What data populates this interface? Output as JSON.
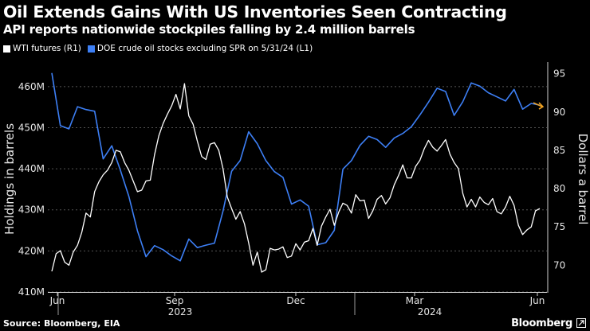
{
  "title": "Oil Extends Gains With US Inventories Seen Contracting",
  "subtitle": "API reports nationwide stockpiles falling by 2.4 million barrels",
  "source": "Source: Bloomberg, EIA",
  "brand": "Bloomberg",
  "chart_data": {
    "type": "line",
    "legend": [
      {
        "name": "WTI futures (R1)",
        "color": "#ffffff"
      },
      {
        "name": "DOE crude oil stocks excluding SPR on 5/31/24 (L1)",
        "color": "#3d7ff5"
      }
    ],
    "x_ticks": [
      "Jun",
      "Sep",
      "Dec",
      "Mar",
      "Jun"
    ],
    "x_year_labels": [
      "2023",
      "2024"
    ],
    "y_left": {
      "label": "Holdings in barrels",
      "ticks": [
        "410M",
        "420M",
        "430M",
        "440M",
        "450M",
        "460M"
      ],
      "range": [
        410,
        465
      ]
    },
    "y_right": {
      "label": "Dollars a barrel",
      "ticks": [
        "70",
        "75",
        "80",
        "85",
        "90",
        "95"
      ],
      "range": [
        66.5,
        96
      ]
    },
    "series": [
      {
        "name": "DOE crude oil stocks excluding SPR on 5/31/24 (L1)",
        "axis": "left",
        "color": "#3d7ff5",
        "values": [
          [
            0,
            463.3
          ],
          [
            1,
            450.5
          ],
          [
            2,
            449.7
          ],
          [
            3,
            455.1
          ],
          [
            4,
            454.4
          ],
          [
            5,
            454.0
          ],
          [
            6,
            442.4
          ],
          [
            7,
            445.6
          ],
          [
            8,
            439.7
          ],
          [
            9,
            433.3
          ],
          [
            10,
            424.9
          ],
          [
            11,
            418.6
          ],
          [
            12,
            421.3
          ],
          [
            13,
            420.3
          ],
          [
            14,
            418.8
          ],
          [
            15,
            417.6
          ],
          [
            16,
            422.9
          ],
          [
            17,
            420.8
          ],
          [
            18,
            421.4
          ],
          [
            19,
            421.9
          ],
          [
            20,
            429.7
          ],
          [
            21,
            439.4
          ],
          [
            22,
            442.0
          ],
          [
            23,
            449.0
          ],
          [
            24,
            446.1
          ],
          [
            25,
            442.0
          ],
          [
            26,
            439.3
          ],
          [
            27,
            437.9
          ],
          [
            28,
            431.4
          ],
          [
            29,
            432.4
          ],
          [
            30,
            430.9
          ],
          [
            31,
            421.5
          ],
          [
            32,
            422.0
          ],
          [
            33,
            425.0
          ],
          [
            34,
            439.9
          ],
          [
            35,
            442.0
          ],
          [
            36,
            445.7
          ],
          [
            37,
            447.9
          ],
          [
            38,
            447.1
          ],
          [
            39,
            445.2
          ],
          [
            40,
            447.5
          ],
          [
            41,
            448.6
          ],
          [
            42,
            450.2
          ],
          [
            43,
            453.1
          ],
          [
            44,
            456.2
          ],
          [
            45,
            459.6
          ],
          [
            46,
            458.8
          ],
          [
            47,
            453.0
          ],
          [
            48,
            456.3
          ],
          [
            49,
            460.9
          ],
          [
            50,
            460.1
          ],
          [
            51,
            458.5
          ],
          [
            52,
            457.5
          ],
          [
            53,
            456.5
          ],
          [
            54,
            459.3
          ],
          [
            55,
            454.5
          ],
          [
            56,
            455.9
          ],
          [
            57,
            455.5
          ]
        ]
      },
      {
        "name": "WTI futures (R1)",
        "axis": "right",
        "color": "#ffffff",
        "values": [
          [
            0,
            69.2
          ],
          [
            0.5,
            71.5
          ],
          [
            1,
            71.9
          ],
          [
            1.5,
            70.4
          ],
          [
            2,
            70.0
          ],
          [
            2.5,
            71.7
          ],
          [
            3,
            72.6
          ],
          [
            3.5,
            74.3
          ],
          [
            4,
            76.8
          ],
          [
            4.5,
            76.3
          ],
          [
            5,
            79.6
          ],
          [
            5.5,
            80.9
          ],
          [
            6,
            81.8
          ],
          [
            6.5,
            82.4
          ],
          [
            7,
            83.4
          ],
          [
            7.5,
            85.0
          ],
          [
            8,
            84.8
          ],
          [
            8.5,
            83.4
          ],
          [
            9,
            82.4
          ],
          [
            9.5,
            81.0
          ],
          [
            10,
            79.6
          ],
          [
            10.5,
            79.8
          ],
          [
            11,
            81.0
          ],
          [
            11.5,
            81.1
          ],
          [
            12,
            84.4
          ],
          [
            12.5,
            86.9
          ],
          [
            13,
            88.5
          ],
          [
            13.5,
            89.7
          ],
          [
            14,
            90.8
          ],
          [
            14.5,
            92.3
          ],
          [
            15,
            90.4
          ],
          [
            15.5,
            93.7
          ],
          [
            16,
            89.5
          ],
          [
            16.5,
            88.4
          ],
          [
            17,
            86.2
          ],
          [
            17.5,
            84.2
          ],
          [
            18,
            83.8
          ],
          [
            18.5,
            85.8
          ],
          [
            19,
            86.0
          ],
          [
            19.5,
            85.0
          ],
          [
            20,
            82.6
          ],
          [
            20.5,
            78.9
          ],
          [
            21,
            77.4
          ],
          [
            21.5,
            76.0
          ],
          [
            22,
            77.0
          ],
          [
            22.5,
            75.4
          ],
          [
            23,
            72.9
          ],
          [
            23.5,
            70.0
          ],
          [
            24,
            71.7
          ],
          [
            24.5,
            69.1
          ],
          [
            25,
            69.4
          ],
          [
            25.5,
            72.2
          ],
          [
            26,
            72.0
          ],
          [
            26.5,
            72.1
          ],
          [
            27,
            72.4
          ],
          [
            27.5,
            71.0
          ],
          [
            28,
            71.2
          ],
          [
            28.5,
            72.8
          ],
          [
            29,
            72.0
          ],
          [
            29.5,
            73.0
          ],
          [
            30,
            73.2
          ],
          [
            30.5,
            74.8
          ],
          [
            31,
            72.6
          ],
          [
            31.5,
            75.1
          ],
          [
            32,
            76.3
          ],
          [
            32.5,
            77.3
          ],
          [
            33,
            75.2
          ],
          [
            33.5,
            76.9
          ],
          [
            34,
            78.1
          ],
          [
            34.5,
            77.8
          ],
          [
            35,
            76.8
          ],
          [
            35.5,
            79.2
          ],
          [
            36,
            78.4
          ],
          [
            36.5,
            78.5
          ],
          [
            37,
            76.1
          ],
          [
            37.5,
            77.1
          ],
          [
            38,
            78.6
          ],
          [
            38.5,
            79.1
          ],
          [
            39,
            78.0
          ],
          [
            39.5,
            78.8
          ],
          [
            40,
            80.5
          ],
          [
            40.5,
            81.7
          ],
          [
            41,
            83.1
          ],
          [
            41.5,
            81.4
          ],
          [
            42,
            81.4
          ],
          [
            42.5,
            82.9
          ],
          [
            43,
            83.7
          ],
          [
            43.5,
            85.2
          ],
          [
            44,
            86.3
          ],
          [
            44.5,
            85.4
          ],
          [
            45,
            84.9
          ],
          [
            45.5,
            85.6
          ],
          [
            46,
            86.4
          ],
          [
            46.5,
            84.5
          ],
          [
            47,
            83.4
          ],
          [
            47.5,
            82.6
          ],
          [
            48,
            79.4
          ],
          [
            48.5,
            77.6
          ],
          [
            49,
            78.6
          ],
          [
            49.5,
            77.6
          ],
          [
            50,
            78.9
          ],
          [
            50.5,
            78.2
          ],
          [
            51,
            77.9
          ],
          [
            51.5,
            78.7
          ],
          [
            52,
            77.0
          ],
          [
            52.5,
            76.7
          ],
          [
            53,
            77.6
          ],
          [
            53.5,
            79.0
          ],
          [
            54,
            77.8
          ],
          [
            54.5,
            75.2
          ],
          [
            55,
            74.0
          ],
          [
            55.5,
            74.6
          ],
          [
            56,
            75.0
          ],
          [
            56.5,
            77.1
          ],
          [
            57,
            77.4
          ]
        ]
      }
    ]
  }
}
